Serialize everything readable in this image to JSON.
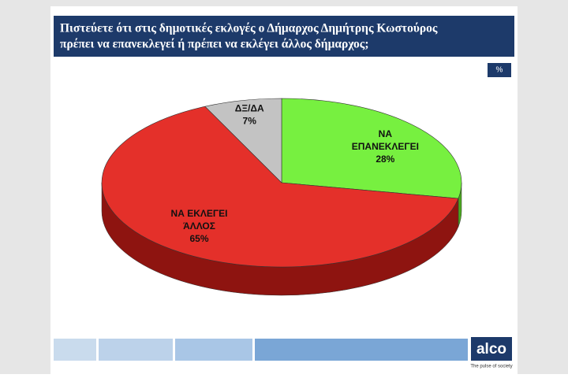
{
  "chart_data": {
    "type": "pie3d",
    "title": [
      "Πιστεύετε ότι στις δημοτικές εκλογές ο Δήμαρχος Δημήτρης Κωστούρος",
      "πρέπει να επανεκλεγεί ή πρέπει  να εκλέγει άλλος δήμαρχος;"
    ],
    "unit_badge": "%",
    "categories": [
      [
        "ΝΑ",
        "ΕΠΑΝΕΚΛΕΓΕΙ"
      ],
      [
        "ΝΑ ΕΚΛΕΓΕΙ",
        "ΆΛΛΟΣ"
      ],
      [
        "ΔΞ/ΔΑ"
      ]
    ],
    "values": [
      28,
      65,
      7
    ],
    "value_labels": [
      "28%",
      "65%",
      "7%"
    ],
    "colors": [
      "#77f040",
      "#e4302a",
      "#c3c3c3"
    ],
    "side_colors": [
      "#4aa81e",
      "#8e1410",
      "#8a8a8a"
    ]
  },
  "footer": {
    "logo": "alco",
    "tagline": "The pulse of society"
  }
}
